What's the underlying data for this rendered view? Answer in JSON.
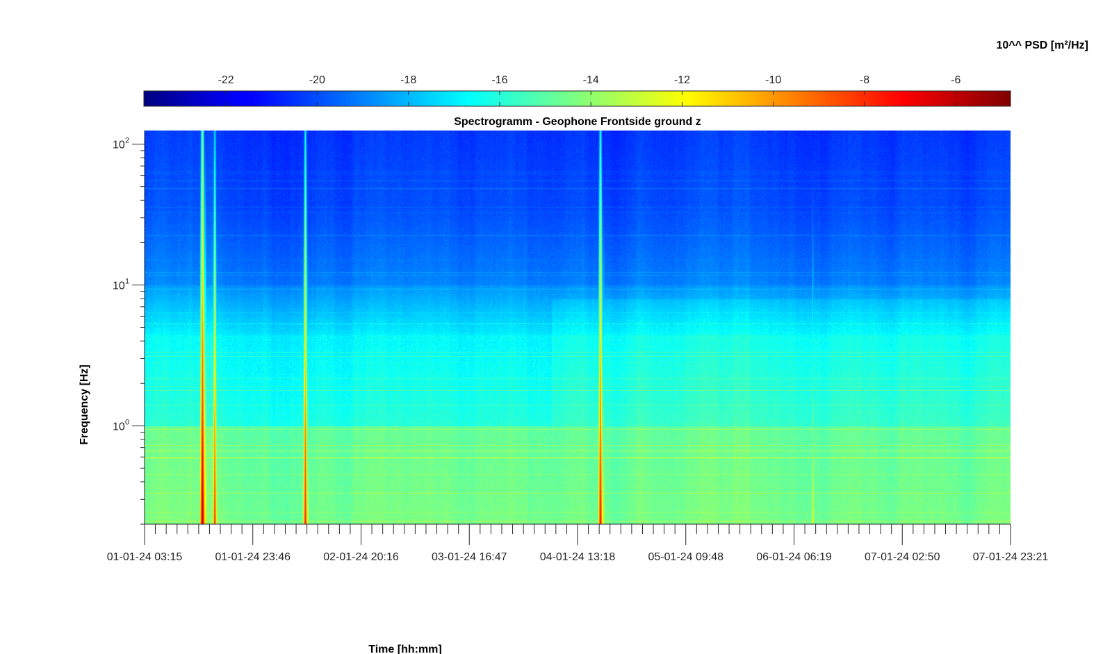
{
  "chart_data": {
    "type": "heatmap",
    "title": "Spectrogramm - Geophone Frontside ground z",
    "xlabel": "Time [hh:mm]",
    "ylabel": "Frequency [Hz]",
    "y_scale": "log",
    "y_ticks": [
      {
        "base": "10",
        "exp": "2",
        "value": 100
      },
      {
        "base": "10",
        "exp": "1",
        "value": 10
      },
      {
        "base": "10",
        "exp": "0",
        "value": 1
      }
    ],
    "ylim": [
      0.2,
      125
    ],
    "x_ticks": [
      "01-01-24 03:15",
      "01-01-24 23:46",
      "02-01-24 20:16",
      "03-01-24 16:47",
      "04-01-24 13:18",
      "05-01-24 09:48",
      "06-01-24 06:19",
      "07-01-24 02:50",
      "07-01-24 23:21"
    ],
    "xlim": [
      "01-01-24 03:15",
      "07-01-24 23:21"
    ],
    "colorbar": {
      "label": "10^^ PSD [m²/Hz]",
      "ticks": [
        "-22",
        "-20",
        "-18",
        "-16",
        "-14",
        "-12",
        "-10",
        "-8",
        "-6"
      ],
      "range": [
        -23.8,
        -4.8
      ],
      "colormap": "jet"
    },
    "colors": {
      "low": "#00007f",
      "mid": "#7fff7f",
      "high": "#7f0000"
    },
    "transient_events": [
      {
        "time": "01-01-24 14:10",
        "peak_log_psd": -5.5
      },
      {
        "time": "01-01-24 16:30",
        "peak_log_psd": -8.0
      },
      {
        "time": "02-01-24 09:40",
        "peak_log_psd": -7.5
      },
      {
        "time": "04-01-24 17:35",
        "peak_log_psd": -7.0
      },
      {
        "time": "06-01-24 09:50",
        "peak_log_psd": -12.0
      }
    ],
    "grid": false
  }
}
